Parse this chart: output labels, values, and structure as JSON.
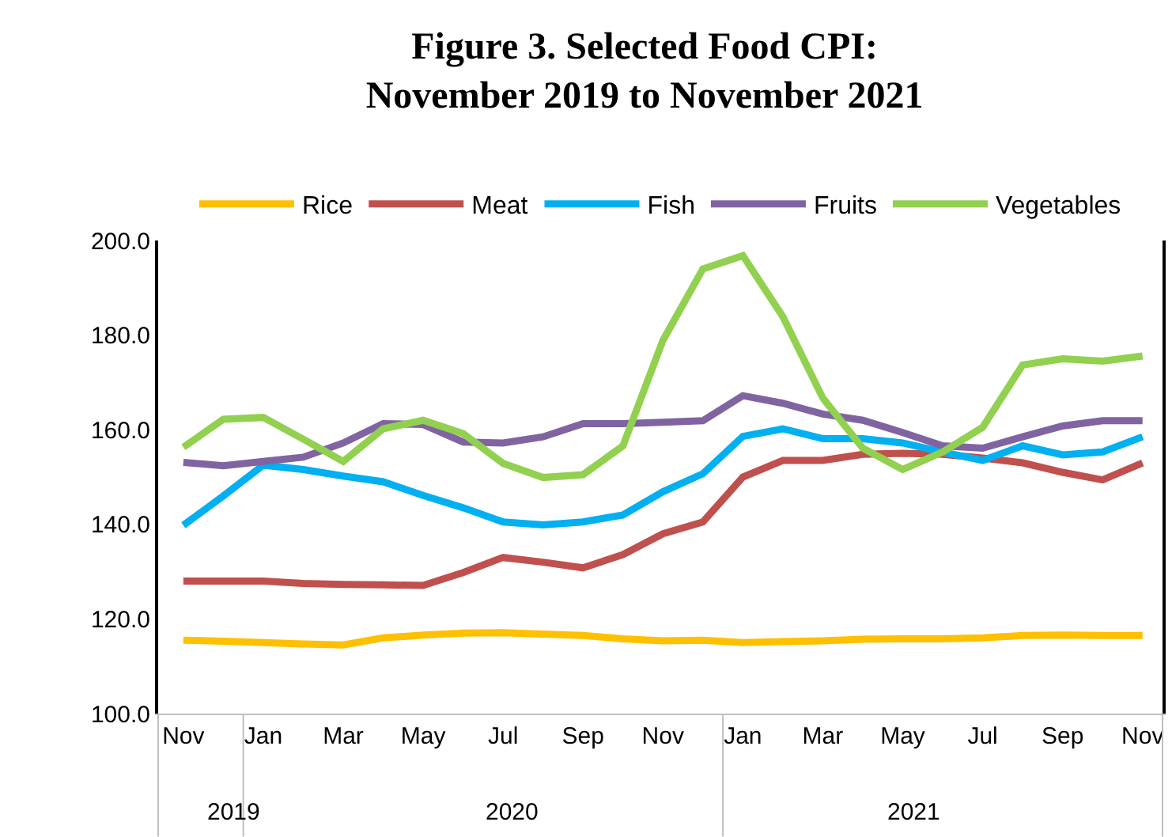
{
  "chart_data": {
    "type": "line",
    "title": "Figure 3. Selected Food CPI:\nNovember 2019 to November 2021",
    "categories": [
      "Nov",
      null,
      "Jan",
      null,
      "Mar",
      null,
      "May",
      null,
      "Jul",
      null,
      "Sep",
      null,
      "Nov",
      null,
      "Jan",
      null,
      "Mar",
      null,
      "May",
      null,
      "Jul",
      null,
      "Sep",
      null,
      "Nov"
    ],
    "series": [
      {
        "name": "Rice",
        "color": "#ffc000",
        "values": [
          115.5,
          115.3,
          115,
          114.7,
          114.5,
          116,
          116.6,
          117,
          117.1,
          116.8,
          116.5,
          115.8,
          115.4,
          115.5,
          115,
          115.2,
          115.4,
          115.7,
          115.8,
          115.8,
          116,
          116.5,
          116.6,
          116.5,
          116.5
        ]
      },
      {
        "name": "Meat",
        "color": "#c0504d",
        "values": [
          128,
          128,
          128,
          127.5,
          127.3,
          127.2,
          127.1,
          129.8,
          133,
          132,
          130.8,
          133.6,
          138,
          140.5,
          150,
          153.5,
          153.5,
          154.8,
          155,
          154.8,
          154,
          153,
          151,
          149.4,
          153
        ]
      },
      {
        "name": "Fish",
        "color": "#00b0f0",
        "values": [
          139.8,
          146,
          152.5,
          151.6,
          150.2,
          149,
          146.1,
          143.5,
          140.5,
          139.9,
          140.5,
          142,
          146.9,
          150.7,
          158.6,
          160.2,
          158.1,
          158.1,
          157.2,
          155.3,
          153.5,
          156.6,
          154.7,
          155.3,
          158.5
        ]
      },
      {
        "name": "Fruits",
        "color": "#8064a2",
        "values": [
          153.1,
          152.4,
          153.3,
          154.2,
          157.2,
          161.3,
          161.1,
          157.4,
          157.2,
          158.5,
          161.3,
          161.3,
          161.6,
          161.9,
          167.2,
          165.6,
          163.3,
          162,
          159.4,
          156.6,
          156.1,
          158.5,
          160.8,
          161.9,
          161.9
        ]
      },
      {
        "name": "Vegetables",
        "color": "#92d050",
        "values": [
          156.3,
          162.2,
          162.6,
          158,
          153.3,
          160.2,
          162,
          159.2,
          152.9,
          149.9,
          150.5,
          156.6,
          178.9,
          194,
          196.8,
          183.9,
          166.7,
          156.1,
          151.6,
          155.3,
          160.5,
          173.7,
          175,
          174.5,
          175.6
        ]
      }
    ],
    "ylim": [
      100,
      200
    ],
    "yticks": [
      {
        "value": 100,
        "label": "100.0"
      },
      {
        "value": 120,
        "label": "120.0"
      },
      {
        "value": 140,
        "label": "140.0"
      },
      {
        "value": 160,
        "label": "160.0"
      },
      {
        "value": 180,
        "label": "180.0"
      },
      {
        "value": 200,
        "label": "200.0"
      }
    ],
    "annotations": [
      "2019",
      "2020",
      "2021"
    ],
    "grid": false,
    "legend": "top",
    "marker": "none",
    "line_style": "solid"
  }
}
